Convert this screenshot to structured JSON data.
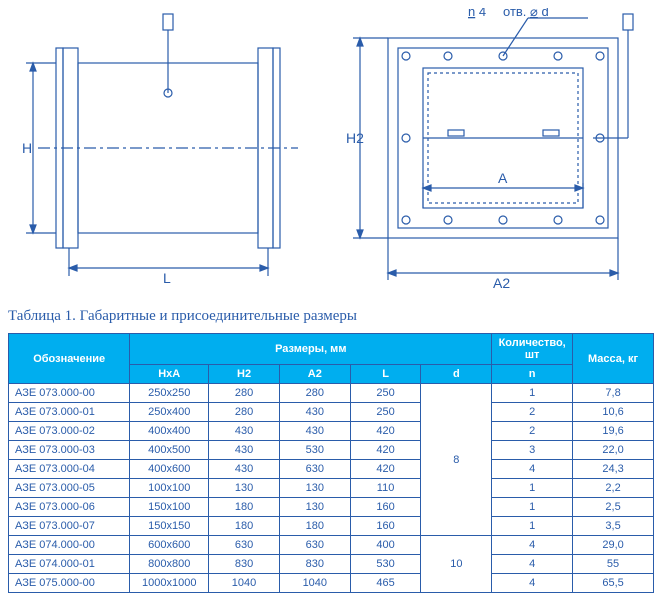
{
  "annotation": {
    "label_n": "n",
    "value_n": "4",
    "label_otv": "отв.",
    "hole_symbol": "⌀",
    "label_d": "d"
  },
  "dims": {
    "H": "H",
    "L": "L",
    "H2": "H2",
    "A": "A",
    "A2": "A2"
  },
  "caption": "Таблица 1. Габаритные и присоединительные размеры",
  "table": {
    "header": {
      "designation": "Обозначение",
      "sizes": "Размеры, мм",
      "qty": "Количество, шт",
      "mass": "Масса, кг",
      "HxA": "HxA",
      "H2": "H2",
      "A2": "A2",
      "L": "L",
      "d": "d",
      "n": "n"
    },
    "d_groups": [
      {
        "d": "8",
        "span": 8
      },
      {
        "d": "10",
        "span": 3
      }
    ],
    "rows": [
      {
        "code": "АЗЕ 073.000-00",
        "HxA": "250х250",
        "H2": "280",
        "A2": "280",
        "L": "250",
        "n": "1",
        "mass": "7,8"
      },
      {
        "code": "АЗЕ 073.000-01",
        "HxA": "250х400",
        "H2": "280",
        "A2": "430",
        "L": "250",
        "n": "2",
        "mass": "10,6"
      },
      {
        "code": "АЗЕ 073.000-02",
        "HxA": "400х400",
        "H2": "430",
        "A2": "430",
        "L": "420",
        "n": "2",
        "mass": "19,6"
      },
      {
        "code": "АЗЕ 073.000-03",
        "HxA": "400х500",
        "H2": "430",
        "A2": "530",
        "L": "420",
        "n": "3",
        "mass": "22,0"
      },
      {
        "code": "АЗЕ 073.000-04",
        "HxA": "400х600",
        "H2": "430",
        "A2": "630",
        "L": "420",
        "n": "4",
        "mass": "24,3"
      },
      {
        "code": "АЗЕ 073.000-05",
        "HxA": "100х100",
        "H2": "130",
        "A2": "130",
        "L": "110",
        "n": "1",
        "mass": "2,2"
      },
      {
        "code": "АЗЕ 073.000-06",
        "HxA": "150х100",
        "H2": "180",
        "A2": "130",
        "L": "160",
        "n": "1",
        "mass": "2,5"
      },
      {
        "code": "АЗЕ 073.000-07",
        "HxA": "150х150",
        "H2": "180",
        "A2": "180",
        "L": "160",
        "n": "1",
        "mass": "3,5"
      },
      {
        "code": "АЗЕ 074.000-00",
        "HxA": "600х600",
        "H2": "630",
        "A2": "630",
        "L": "400",
        "n": "4",
        "mass": "29,0"
      },
      {
        "code": "АЗЕ 074.000-01",
        "HxA": "800х800",
        "H2": "830",
        "A2": "830",
        "L": "530",
        "n": "4",
        "mass": "55"
      },
      {
        "code": "АЗЕ 075.000-00",
        "HxA": "1000х1000",
        "H2": "1040",
        "A2": "1040",
        "L": "465",
        "n": "4",
        "mass": "65,5"
      }
    ],
    "col_widths": {
      "code": "120",
      "HxA": "78",
      "H2": "70",
      "A2": "70",
      "L": "70",
      "d": "70",
      "n": "80",
      "mass": "80"
    }
  },
  "colors": {
    "line": "#2a5caa",
    "header_bg": "#00aeef",
    "text": "#2a5caa"
  }
}
